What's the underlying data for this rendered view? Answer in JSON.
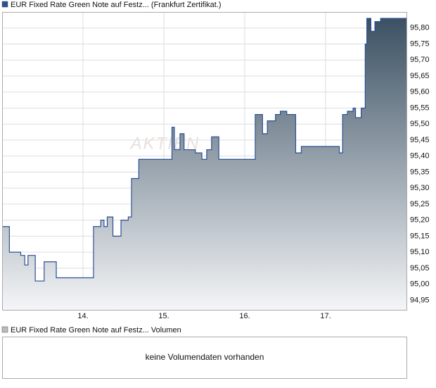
{
  "chart_data": {
    "type": "line",
    "title": "EUR Fixed Rate Green Note auf Festz... (Frankfurt Zertifikat.)",
    "watermark": "AKTIEN",
    "step": true,
    "grid": true,
    "series": [
      {
        "name": "EUR Fixed Rate Green Note auf Festz... (Frankfurt Zertifikat.)",
        "color": "#2b4f94",
        "x": [
          13.0,
          13.09,
          13.23,
          13.28,
          13.32,
          13.41,
          13.52,
          13.67,
          14.13,
          14.22,
          14.26,
          14.3,
          14.37,
          14.47,
          14.56,
          14.6,
          14.69,
          15.1,
          15.13,
          15.2,
          15.25,
          15.39,
          15.47,
          15.53,
          15.59,
          15.68,
          16.13,
          16.22,
          16.28,
          16.38,
          16.44,
          16.52,
          16.63,
          16.7,
          17.17,
          17.21,
          17.27,
          17.34,
          17.37,
          17.44,
          17.49,
          17.51,
          17.56,
          17.61,
          17.68,
          18.0
        ],
        "values": [
          95.18,
          95.1,
          95.09,
          95.06,
          95.09,
          95.01,
          95.07,
          95.02,
          95.18,
          95.2,
          95.18,
          95.21,
          95.15,
          95.2,
          95.21,
          95.33,
          95.39,
          95.49,
          95.42,
          95.47,
          95.42,
          95.41,
          95.39,
          95.42,
          95.46,
          95.39,
          95.53,
          95.47,
          95.51,
          95.53,
          95.54,
          95.53,
          95.41,
          95.43,
          95.41,
          95.53,
          95.54,
          95.55,
          95.52,
          95.55,
          95.75,
          95.83,
          95.79,
          95.82,
          95.83,
          95.83
        ]
      }
    ],
    "xlim": [
      13,
      18
    ],
    "xticks": [
      {
        "value": 14,
        "label": "14."
      },
      {
        "value": 15,
        "label": "15."
      },
      {
        "value": 16,
        "label": "16."
      },
      {
        "value": 17,
        "label": "17."
      }
    ],
    "ylim": [
      94.92,
      95.85
    ],
    "yticks": [
      {
        "value": 94.95,
        "label": "94,95"
      },
      {
        "value": 95.0,
        "label": "95,00"
      },
      {
        "value": 95.05,
        "label": "95,05"
      },
      {
        "value": 95.1,
        "label": "95,10"
      },
      {
        "value": 95.15,
        "label": "95,15"
      },
      {
        "value": 95.2,
        "label": "95,20"
      },
      {
        "value": 95.25,
        "label": "95,25"
      },
      {
        "value": 95.3,
        "label": "95,30"
      },
      {
        "value": 95.35,
        "label": "95,35"
      },
      {
        "value": 95.4,
        "label": "95,40"
      },
      {
        "value": 95.45,
        "label": "95,45"
      },
      {
        "value": 95.5,
        "label": "95,50"
      },
      {
        "value": 95.55,
        "label": "95,55"
      },
      {
        "value": 95.6,
        "label": "95,60"
      },
      {
        "value": 95.65,
        "label": "95,65"
      },
      {
        "value": 95.7,
        "label": "95,70"
      },
      {
        "value": 95.75,
        "label": "95,75"
      },
      {
        "value": 95.8,
        "label": "95,80"
      }
    ],
    "volume_legend": "EUR Fixed Rate Green Note auf Festz... Volumen",
    "volume_message": "keine Volumendaten vorhanden"
  }
}
